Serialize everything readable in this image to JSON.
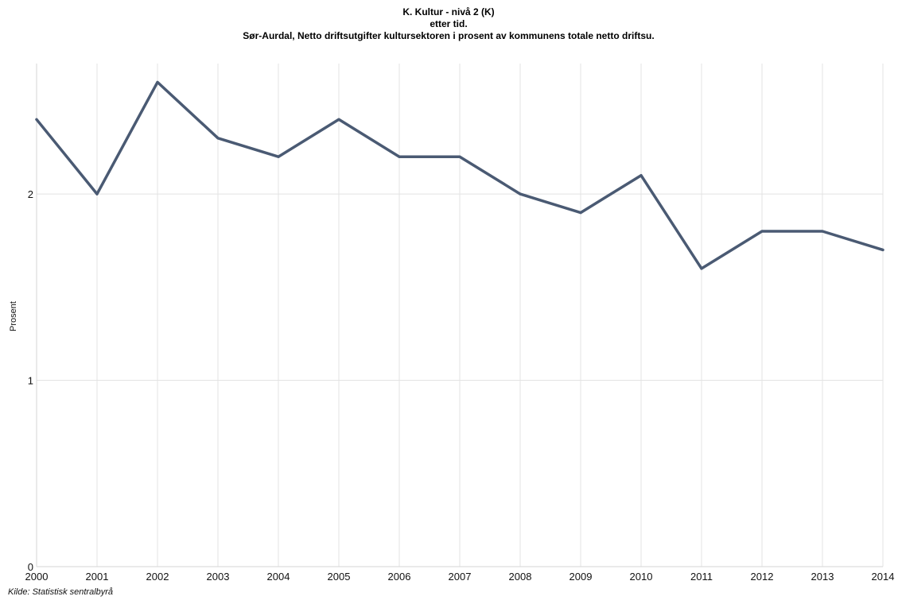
{
  "chart_data": {
    "type": "line",
    "title": "K. Kultur - nivå 2 (K)",
    "subtitle": "etter tid.",
    "subtitle2": "Sør-Aurdal, Netto driftsutgifter kultursektoren i prosent av kommunens totale netto driftsu.",
    "xlabel": "",
    "ylabel": "Prosent",
    "x": [
      "2000",
      "2001",
      "2002",
      "2003",
      "2004",
      "2005",
      "2006",
      "2007",
      "2008",
      "2009",
      "2010",
      "2011",
      "2012",
      "2013",
      "2014"
    ],
    "series": [
      {
        "values": [
          2.4,
          2.0,
          2.6,
          2.3,
          2.2,
          2.4,
          2.2,
          2.2,
          2.0,
          1.9,
          2.1,
          1.6,
          1.8,
          1.8,
          1.7
        ]
      }
    ],
    "ylim": [
      0,
      2.7
    ],
    "yticks": [
      0,
      1,
      2
    ],
    "grid": true,
    "legend": "none",
    "source": "Kilde: Statistisk sentralbyrå",
    "colors": {
      "line": "#4a5a73",
      "grid": "#e3e3e3"
    }
  }
}
